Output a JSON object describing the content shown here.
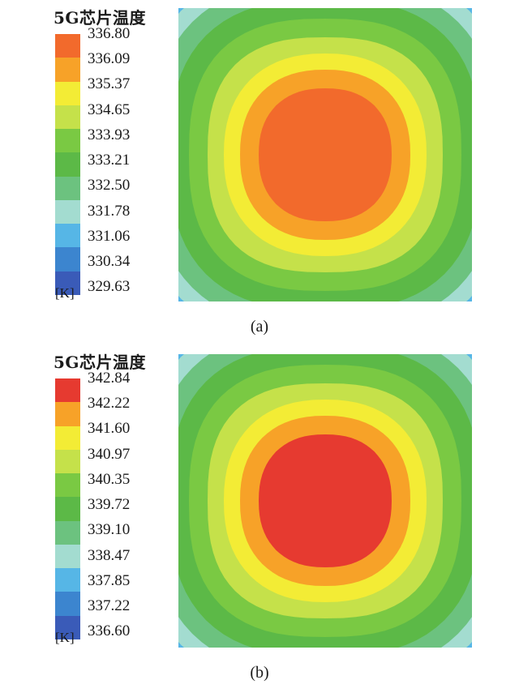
{
  "chart_data": [
    {
      "type": "heatmap",
      "title": "5G芯片温度",
      "unit": "[K]",
      "caption": "(a)",
      "legend_levels": [
        "336.80",
        "336.09",
        "335.37",
        "334.65",
        "333.93",
        "333.21",
        "332.50",
        "331.78",
        "331.06",
        "330.34",
        "329.63"
      ],
      "colors": [
        "#f26a2c",
        "#f7a228",
        "#f3ec35",
        "#c5e14a",
        "#7ac943",
        "#5cb947",
        "#6cc27f",
        "#a3dcd0",
        "#56b6e6",
        "#3c85cf",
        "#3a5bb8"
      ],
      "max_level": 336.8,
      "min_level": 329.63,
      "hotspot": "center"
    },
    {
      "type": "heatmap",
      "title": "5G芯片温度",
      "unit": "[K]",
      "caption": "(b)",
      "legend_levels": [
        "342.84",
        "342.22",
        "341.60",
        "340.97",
        "340.35",
        "339.72",
        "339.10",
        "338.47",
        "337.85",
        "337.22",
        "336.60"
      ],
      "colors": [
        "#e63a30",
        "#f7a228",
        "#f3ec35",
        "#c5e14a",
        "#7ac943",
        "#5cb947",
        "#6cc27f",
        "#a3dcd0",
        "#56b6e6",
        "#3c85cf",
        "#3a5bb8"
      ],
      "max_level": 342.84,
      "min_level": 336.6,
      "hotspot": "center"
    }
  ]
}
